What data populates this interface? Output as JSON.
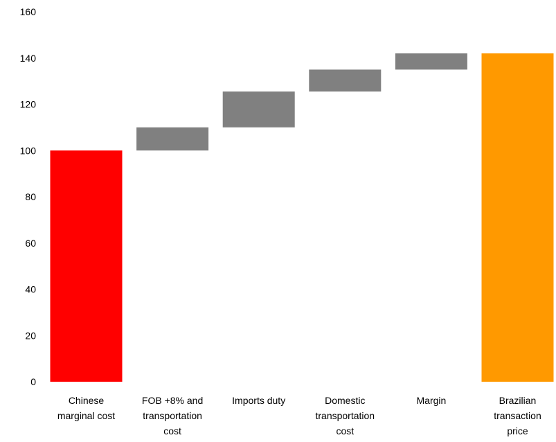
{
  "chart_data": {
    "type": "bar",
    "subtype": "waterfall",
    "categories": [
      [
        "Chinese",
        "marginal cost"
      ],
      [
        "FOB +8% and",
        "transportation",
        "cost"
      ],
      [
        "Imports duty"
      ],
      [
        "Domestic",
        "transportation",
        "cost"
      ],
      [
        "Margin"
      ],
      [
        "Brazilian",
        "transaction",
        "price"
      ]
    ],
    "bars": [
      {
        "base": 0,
        "value": 100,
        "kind": "total"
      },
      {
        "base": 100,
        "value": 10,
        "kind": "step"
      },
      {
        "base": 110,
        "value": 15.5,
        "kind": "step"
      },
      {
        "base": 125.5,
        "value": 9.5,
        "kind": "step"
      },
      {
        "base": 135,
        "value": 7,
        "kind": "step"
      },
      {
        "base": 0,
        "value": 142,
        "kind": "final"
      }
    ],
    "colors": {
      "total": "#ff0000",
      "step": "#808080",
      "final": "#ff9900"
    },
    "ylim": [
      0,
      160
    ],
    "yticks": [
      "0",
      "20",
      "40",
      "60",
      "80",
      "100",
      "120",
      "140",
      "160"
    ],
    "grid": false,
    "legend": "none"
  }
}
